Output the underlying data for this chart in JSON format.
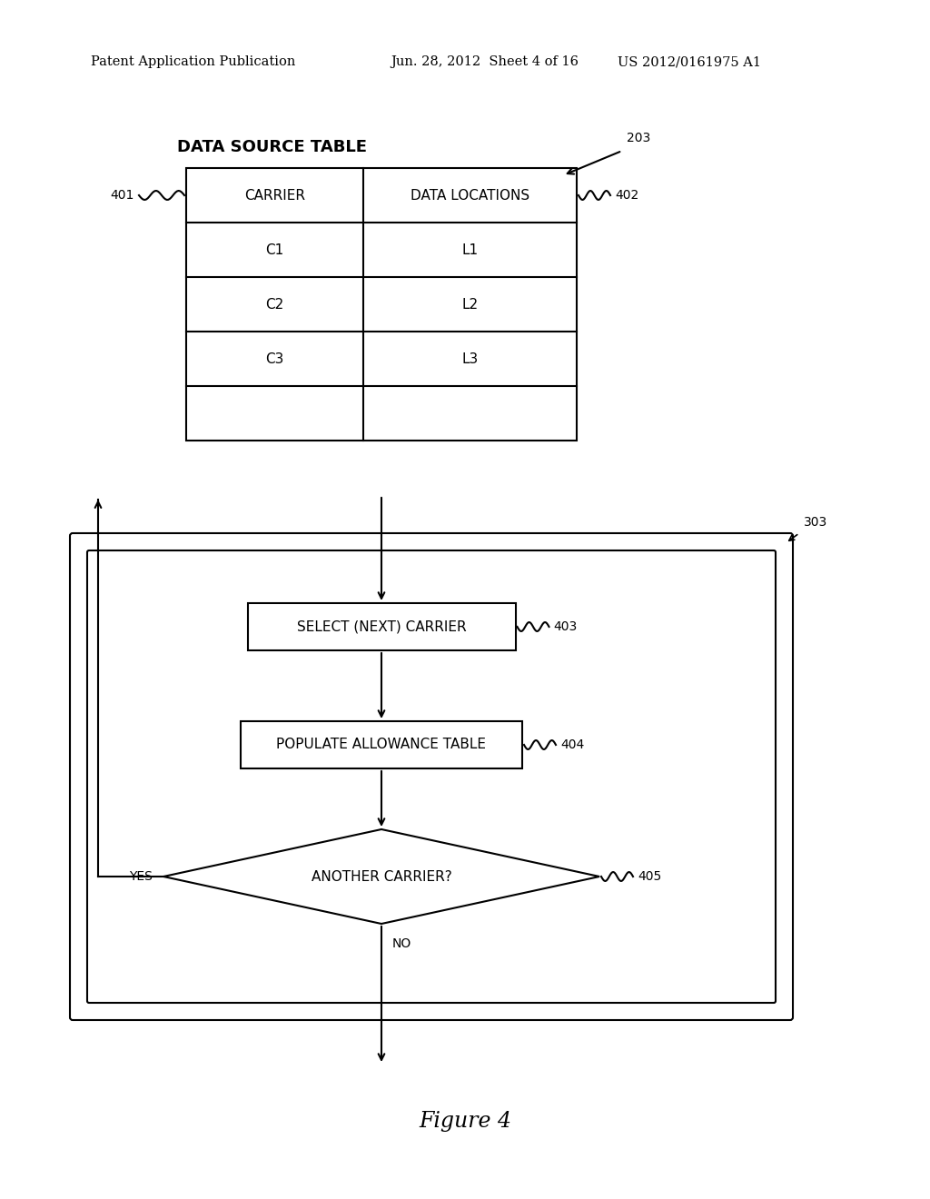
{
  "background_color": "#ffffff",
  "header_left": "Patent Application Publication",
  "header_mid": "Jun. 28, 2012  Sheet 4 of 16",
  "header_right": "US 2012/0161975 A1",
  "figure_label": "Figure 4",
  "table_title": "DATA SOURCE TABLE",
  "table_label_401": "401",
  "table_label_402": "402",
  "table_label_203": "203",
  "table_col1_header": "CARRIER",
  "table_col2_header": "DATA LOCATIONS",
  "table_rows": [
    [
      "C1",
      "L1"
    ],
    [
      "C2",
      "L2"
    ],
    [
      "C3",
      "L3"
    ]
  ],
  "box1_text": "SELECT (NEXT) CARRIER",
  "box1_label": "403",
  "box2_text": "POPULATE ALLOWANCE TABLE",
  "box2_label": "404",
  "diamond_text": "ANOTHER CARRIER?",
  "diamond_label": "405",
  "loop_label_303": "303",
  "yes_label": "YES",
  "no_label": "NO",
  "lw": 1.5
}
